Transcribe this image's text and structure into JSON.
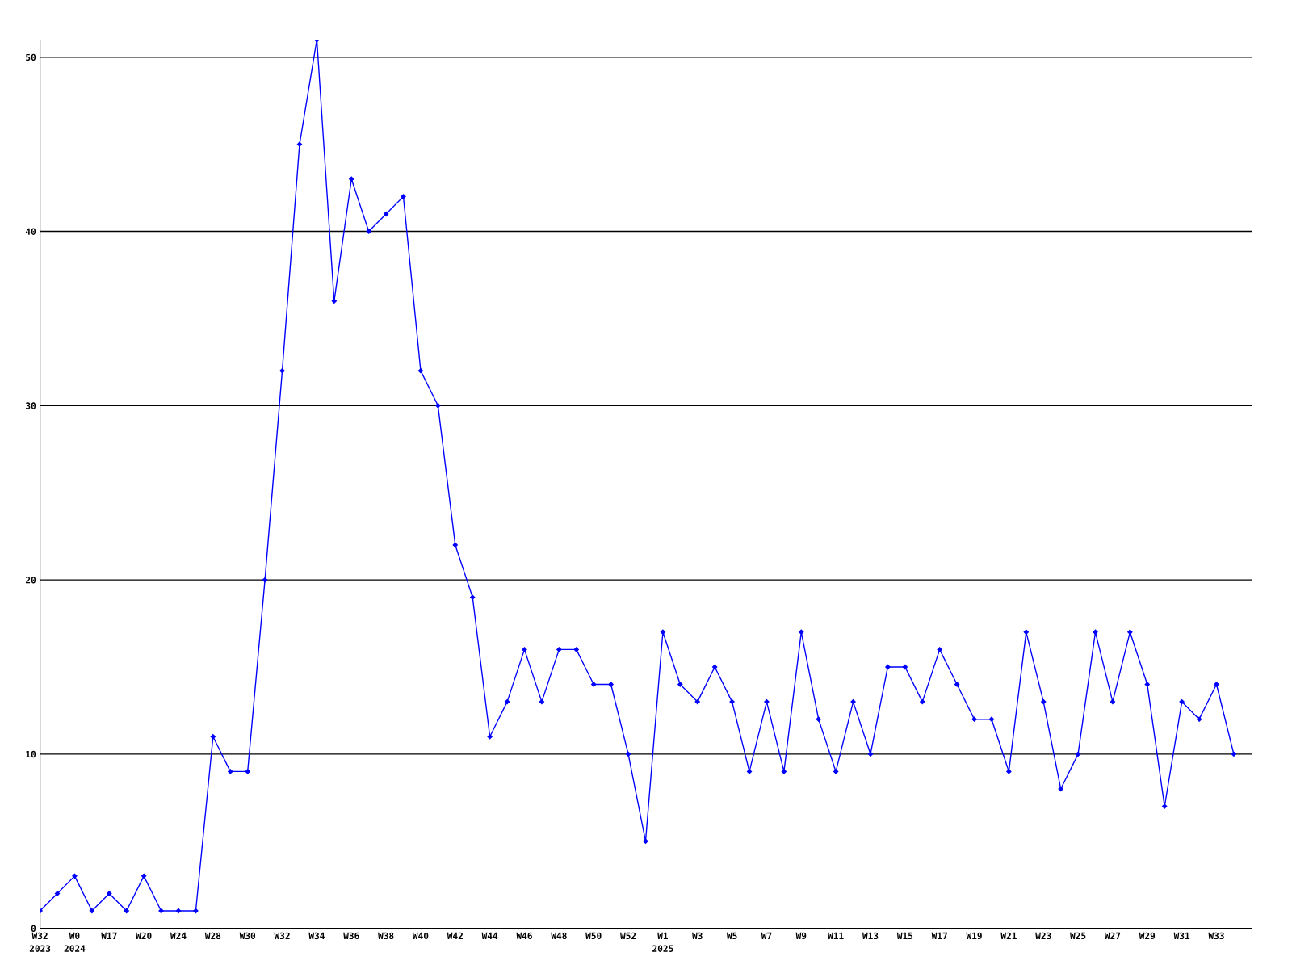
{
  "chart_data": {
    "type": "line",
    "categories": [
      "W32\n2023",
      null,
      "W0\n2024",
      null,
      "W17",
      null,
      "W20",
      null,
      "W24",
      null,
      "W28",
      null,
      "W30",
      null,
      "W32",
      null,
      "W34",
      null,
      "W36",
      null,
      "W38",
      null,
      "W40",
      null,
      "W42",
      null,
      "W44",
      null,
      "W46",
      null,
      "W48",
      null,
      "W50",
      null,
      "W52",
      null,
      "W1\n2025",
      null,
      "W3",
      null,
      "W5",
      null,
      "W7",
      null,
      "W9",
      null,
      "W11",
      null,
      "W13",
      null,
      "W15",
      null,
      "W17",
      null,
      "W19",
      null,
      "W21",
      null,
      "W23",
      null,
      "W25",
      null,
      "W27",
      null,
      "W29",
      null,
      "W31",
      null,
      "W33",
      null
    ],
    "series": [
      {
        "color": "#0000ff",
        "values": [
          1,
          2,
          3,
          1,
          2,
          1,
          3,
          1,
          1,
          1,
          11,
          9,
          9,
          20,
          32,
          45,
          51,
          36,
          43,
          40,
          41,
          42,
          32,
          30,
          22,
          19,
          11,
          13,
          16,
          13,
          16,
          16,
          14,
          14,
          10,
          5,
          17,
          14,
          13,
          15,
          13,
          9,
          13,
          9,
          17,
          12,
          9,
          13,
          10,
          15,
          15,
          13,
          16,
          14,
          12,
          12,
          9,
          17,
          13,
          8,
          10,
          17,
          13,
          17,
          14,
          7,
          13,
          12,
          14,
          10
        ]
      }
    ],
    "ylim": [
      0,
      51
    ],
    "yticks": [
      0,
      10,
      20,
      30,
      40,
      50
    ],
    "grid": "y",
    "marker": "diamond",
    "line_style": "solid"
  }
}
